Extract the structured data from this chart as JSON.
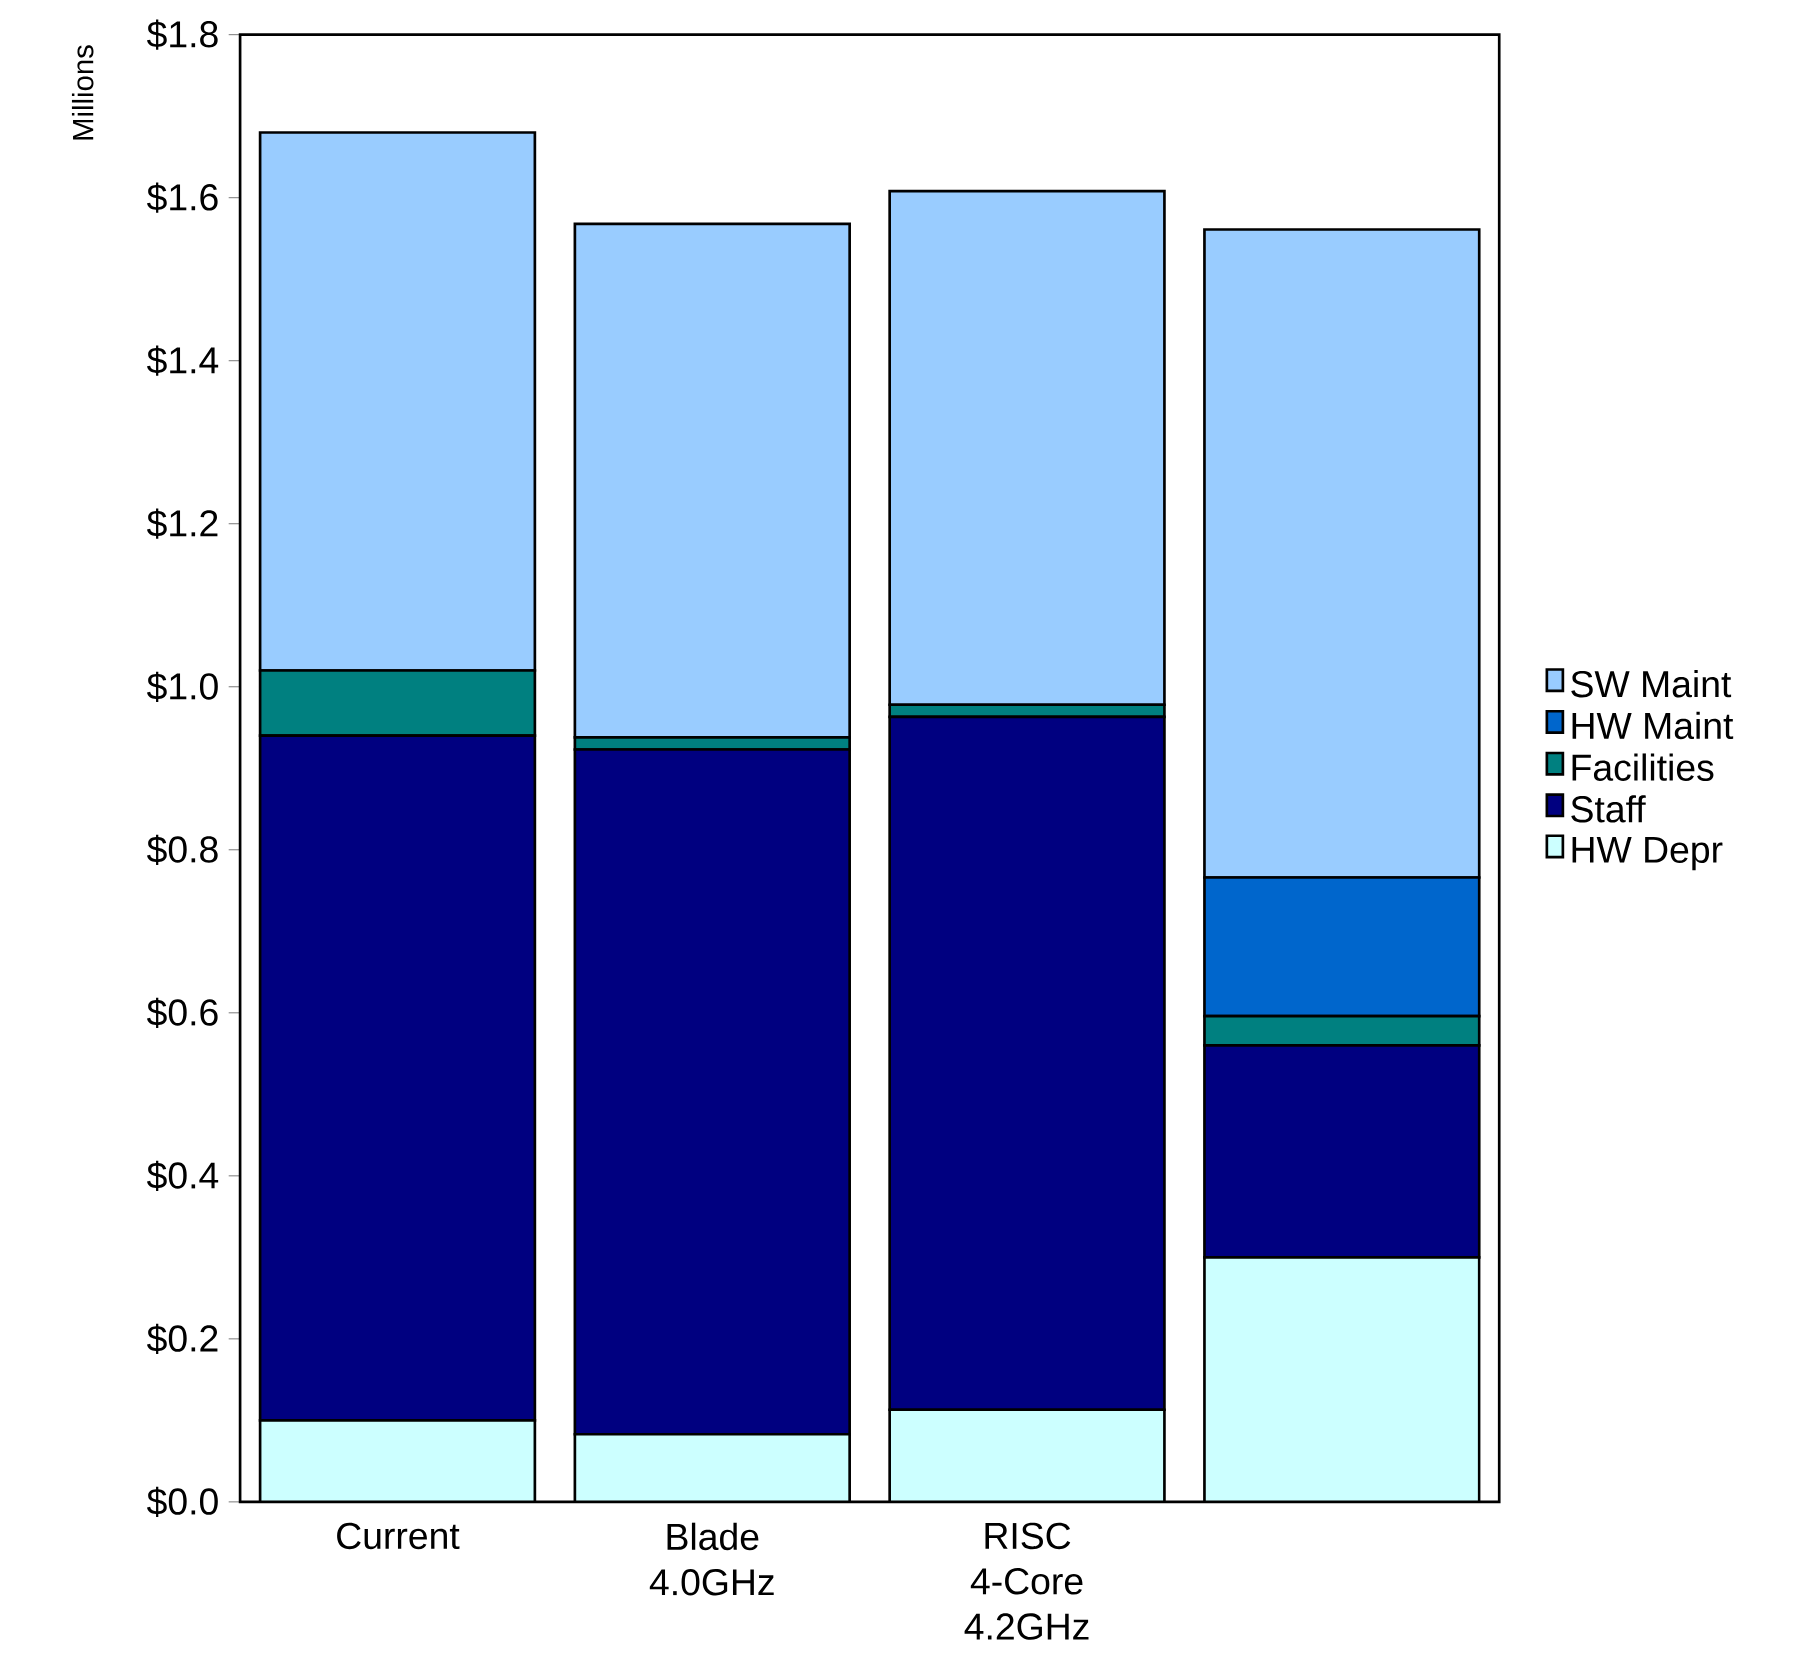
{
  "chart_data": {
    "type": "bar",
    "stacked": true,
    "ylabel": "Millions",
    "categories": [
      "Current",
      "Blade 4.0GHz",
      "RISC 4-Core 4.2GHz",
      null
    ],
    "series": [
      {
        "name": "HW Depr",
        "color": "#ccffff",
        "values": [
          0.1,
          0.083,
          0.113,
          0.3
        ]
      },
      {
        "name": "Staff",
        "color": "#000080",
        "values": [
          0.84,
          0.84,
          0.85,
          0.26
        ]
      },
      {
        "name": "Facilities",
        "color": "#008080",
        "values": [
          0.08,
          0.015,
          0.015,
          0.036
        ]
      },
      {
        "name": "HW Maint",
        "color": "#0066cc",
        "values": [
          0,
          0,
          0,
          0.17
        ]
      },
      {
        "name": "SW Maint",
        "color": "#99ccff",
        "values": [
          0.66,
          0.63,
          0.63,
          0.795
        ]
      }
    ],
    "ylim": [
      0,
      1.8
    ],
    "yticks": [
      {
        "value": 0,
        "label": "$0.0"
      },
      {
        "value": 0.2,
        "label": "$0.2"
      },
      {
        "value": 0.4,
        "label": "$0.4"
      },
      {
        "value": 0.6,
        "label": "$0.6"
      },
      {
        "value": 0.8,
        "label": "$0.8"
      },
      {
        "value": 1.0,
        "label": "$1.0"
      },
      {
        "value": 1.2,
        "label": "$1.2"
      },
      {
        "value": 1.4,
        "label": "$1.4"
      },
      {
        "value": 1.6,
        "label": "$1.6"
      },
      {
        "value": 1.8,
        "label": "$1.8"
      }
    ],
    "legend": "right",
    "grid": false
  }
}
